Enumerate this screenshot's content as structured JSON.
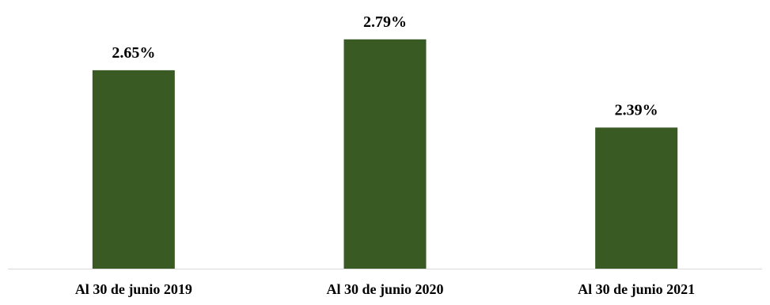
{
  "chart_data": {
    "type": "bar",
    "title": "",
    "xlabel": "",
    "ylabel": "",
    "categories": [
      "Al 30 de junio 2019",
      "Al 30 de junio 2020",
      "Al 30 de junio 2021"
    ],
    "values": [
      2.65,
      2.79,
      2.39
    ],
    "data_labels": [
      "2.65%",
      "2.79%",
      "2.39%"
    ],
    "unit": "%",
    "ylim": [
      1.75,
      2.8
    ],
    "grid": false,
    "legend": "none",
    "bar_color": "#3a5a24",
    "axis_color": "#d9d9d9"
  }
}
